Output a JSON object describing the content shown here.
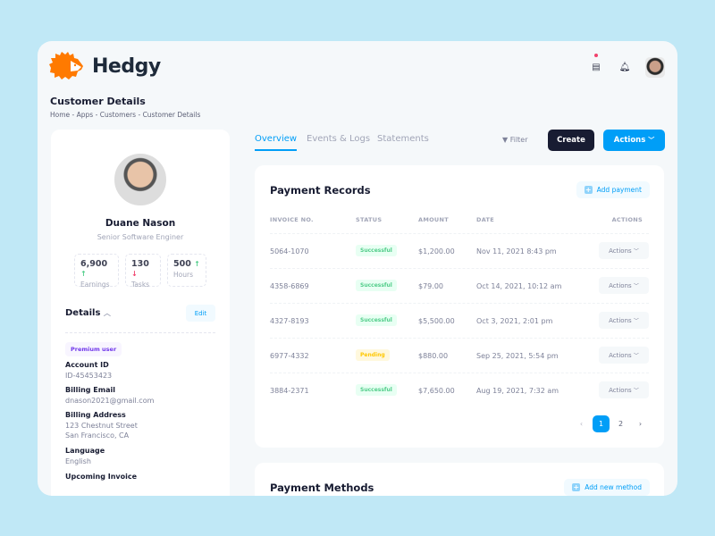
{
  "app": {
    "name": "Hedgy",
    "brand_color": "#ff7a00"
  },
  "page": {
    "title": "Customer Details",
    "breadcrumb": [
      "Home",
      "Apps",
      "Customers",
      "Customer Details"
    ],
    "sep": "-"
  },
  "header": {
    "icons": [
      "chat-icon",
      "bell-icon",
      "user-avatar"
    ]
  },
  "profile": {
    "name": "Duane Nason",
    "role": "Senior Software Enginer",
    "stats": [
      {
        "value": "6,900",
        "label": "Earnings",
        "trend": "up"
      },
      {
        "value": "130",
        "label": "Tasks",
        "trend": "down"
      },
      {
        "value": "500",
        "label": "Hours",
        "trend": "up"
      }
    ],
    "details_title": "Details",
    "edit_label": "Edit",
    "badge": "Premium user",
    "fields": [
      {
        "label": "Account ID",
        "value": "ID-45453423"
      },
      {
        "label": "Billing Email",
        "value": "dnason2021@gmail.com"
      },
      {
        "label": "Billing Address",
        "value": "123 Chestnut Street",
        "value2": "San Francisco, CA"
      },
      {
        "label": "Language",
        "value": "English"
      },
      {
        "label": "Upcoming Invoice"
      }
    ]
  },
  "tabs": [
    {
      "label": "Overview",
      "active": true
    },
    {
      "label": "Events & Logs"
    },
    {
      "label": "Statements"
    }
  ],
  "toolbar": {
    "filter": "Filter",
    "create": "Create",
    "actions": "Actions"
  },
  "payment_records": {
    "title": "Payment Records",
    "add_label": "Add payment",
    "columns": [
      "INVOICE NO.",
      "STATUS",
      "AMOUNT",
      "DATE",
      "ACTIONS"
    ],
    "rows": [
      {
        "invoice": "5064-1070",
        "status": "Successful",
        "amount": "$1,200.00",
        "date": "Nov 11, 2021 8:43 pm",
        "action": "Actions"
      },
      {
        "invoice": "4358-6869",
        "status": "Successful",
        "amount": "$79.00",
        "date": "Oct 14, 2021, 10:12 am",
        "action": "Actions"
      },
      {
        "invoice": "4327-8193",
        "status": "Successful",
        "amount": "$5,500.00",
        "date": "Oct 3, 2021, 2:01 pm",
        "action": "Actions"
      },
      {
        "invoice": "6977-4332",
        "status": "Pending",
        "amount": "$880.00",
        "date": "Sep 25, 2021, 5:54 pm",
        "action": "Actions"
      },
      {
        "invoice": "3884-2371",
        "status": "Successful",
        "amount": "$7,650.00",
        "date": "Aug 19, 2021, 7:32 am",
        "action": "Actions"
      }
    ],
    "pagination": {
      "prev": "‹",
      "pages": [
        "1",
        "2"
      ],
      "current": "1",
      "next": "›"
    }
  },
  "payment_methods": {
    "title": "Payment Methods",
    "add_label": "Add new method"
  }
}
